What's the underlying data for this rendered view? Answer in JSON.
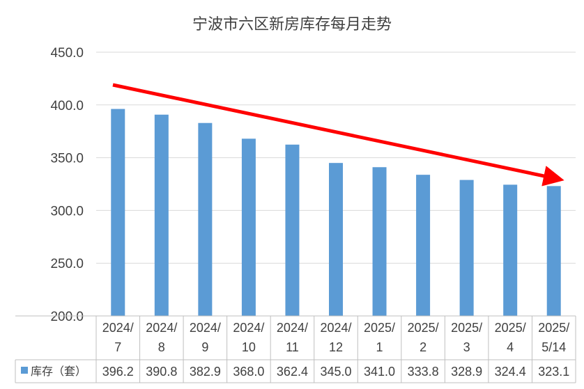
{
  "chart_data": {
    "type": "bar",
    "title": "宁波市六区新房库存每月走势",
    "categories": [
      [
        "2024/",
        "7"
      ],
      [
        "2024/",
        "8"
      ],
      [
        "2024/",
        "9"
      ],
      [
        "2024/",
        "10"
      ],
      [
        "2024/",
        "11"
      ],
      [
        "2024/",
        "12"
      ],
      [
        "2025/",
        "1"
      ],
      [
        "2025/",
        "2"
      ],
      [
        "2025/",
        "3"
      ],
      [
        "2025/",
        "4"
      ],
      [
        "2025/",
        "5/14"
      ]
    ],
    "series": [
      {
        "name": "库存（套）",
        "values": [
          396.2,
          390.8,
          382.9,
          368.0,
          362.4,
          345.0,
          341.0,
          333.8,
          328.9,
          324.4,
          323.1
        ],
        "labels": [
          "396.2",
          "390.8",
          "382.9",
          "368.0",
          "362.4",
          "345.0",
          "341.0",
          "333.8",
          "328.9",
          "324.4",
          "323.1"
        ]
      }
    ],
    "ylim": [
      200,
      450
    ],
    "yticks": [
      "200.0",
      "250.0",
      "300.0",
      "350.0",
      "400.0",
      "450.0"
    ],
    "grid": true,
    "data_table": true,
    "trend_arrow": {
      "color": "#ff0000",
      "direction": "down"
    },
    "colors": {
      "bar": "#5b9bd5",
      "grid": "#d9d9d9",
      "text": "#404040"
    }
  }
}
